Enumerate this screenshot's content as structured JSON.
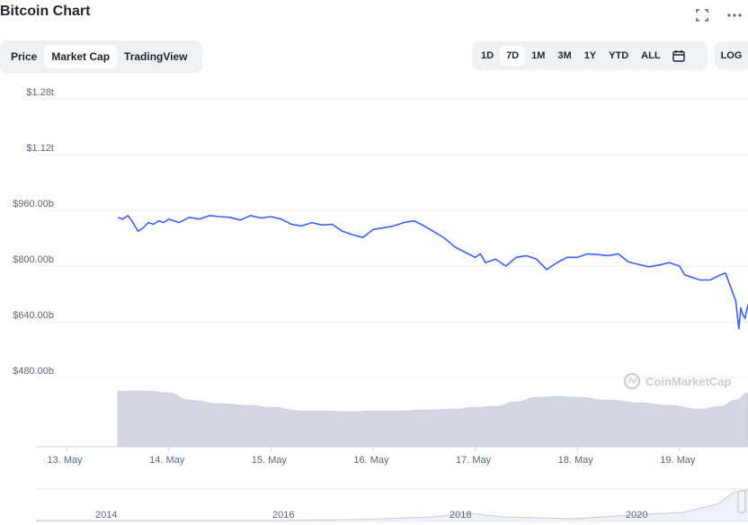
{
  "header": {
    "title": "Bitcoin Chart",
    "fullscreen_icon": "fullscreen-icon",
    "more_icon": "more-horizontal-icon"
  },
  "tabs_left": [
    "Price",
    "Market Cap",
    "TradingView"
  ],
  "tabs_left_active": 1,
  "tabs_right": [
    "1D",
    "7D",
    "1M",
    "3M",
    "1Y",
    "YTD",
    "ALL"
  ],
  "tabs_right_active": 1,
  "calendar_icon": "calendar-icon",
  "log_label": "LOG",
  "watermark": "CoinMarketCap",
  "colors": {
    "line": "#3861fb",
    "volume": "#d1d6e2",
    "grid": "#eceff4",
    "text": "#58667e"
  },
  "chart_data": {
    "type": "line",
    "ylim": [
      480,
      1300
    ],
    "y_ticks": [
      {
        "value": 480,
        "label": "$480.00b"
      },
      {
        "value": 640,
        "label": "$640.00b"
      },
      {
        "value": 800,
        "label": "$800.00b"
      },
      {
        "value": 960,
        "label": "$960.00b"
      },
      {
        "value": 1120,
        "label": "$1.12t"
      },
      {
        "value": 1280,
        "label": "$1.28t"
      }
    ],
    "x_ticks": [
      "13. May",
      "14. May",
      "15. May",
      "16. May",
      "17. May",
      "18. May",
      "19. May"
    ],
    "xlim": [
      12.7,
      19.67
    ],
    "series": [
      {
        "x": [
          13.5,
          13.55,
          13.6,
          13.65,
          13.7,
          13.75,
          13.8,
          13.85,
          13.9,
          13.95,
          14.0,
          14.1,
          14.2,
          14.3,
          14.4,
          14.5,
          14.6,
          14.7,
          14.8,
          14.9,
          15.0,
          15.1,
          15.2,
          15.3,
          15.4,
          15.5,
          15.6,
          15.7,
          15.8,
          15.9,
          16.0,
          16.1,
          16.2,
          16.3,
          16.4,
          16.5,
          16.6,
          16.7,
          16.8,
          16.9,
          17.0,
          17.05,
          17.1,
          17.2,
          17.3,
          17.4,
          17.5,
          17.6,
          17.7,
          17.8,
          17.9,
          18.0,
          18.1,
          18.2,
          18.3,
          18.4,
          18.5,
          18.6,
          18.7,
          18.8,
          18.9,
          19.0,
          19.05,
          19.1,
          19.2,
          19.3,
          19.4,
          19.45,
          19.5,
          19.55,
          19.58,
          19.6,
          19.62,
          19.64,
          19.67
        ],
        "y": [
          940,
          935,
          945,
          925,
          900,
          910,
          925,
          920,
          930,
          925,
          935,
          925,
          940,
          935,
          945,
          942,
          940,
          932,
          945,
          938,
          942,
          935,
          920,
          915,
          925,
          918,
          920,
          900,
          890,
          882,
          905,
          910,
          915,
          925,
          930,
          915,
          898,
          880,
          855,
          840,
          825,
          835,
          810,
          820,
          800,
          825,
          830,
          820,
          790,
          810,
          825,
          825,
          835,
          833,
          830,
          835,
          812,
          805,
          798,
          803,
          810,
          800,
          775,
          770,
          760,
          760,
          775,
          780,
          740,
          700,
          620,
          680,
          660,
          650,
          690
        ]
      }
    ],
    "volume_x": [
      13.5,
      13.8,
      14.0,
      14.2,
      14.5,
      14.8,
      15.0,
      15.3,
      15.5,
      15.8,
      16.0,
      16.3,
      16.5,
      16.8,
      17.0,
      17.2,
      17.4,
      17.6,
      17.8,
      18.0,
      18.3,
      18.6,
      18.9,
      19.2,
      19.4,
      19.55,
      19.67
    ],
    "volume": [
      62,
      62,
      60,
      52,
      48,
      46,
      44,
      40,
      40,
      39,
      40,
      40,
      41,
      42,
      44,
      45,
      50,
      55,
      56,
      55,
      52,
      49,
      46,
      42,
      45,
      52,
      60
    ]
  },
  "navigator": {
    "labels": [
      "2014",
      "2016",
      "2018",
      "2020"
    ]
  }
}
